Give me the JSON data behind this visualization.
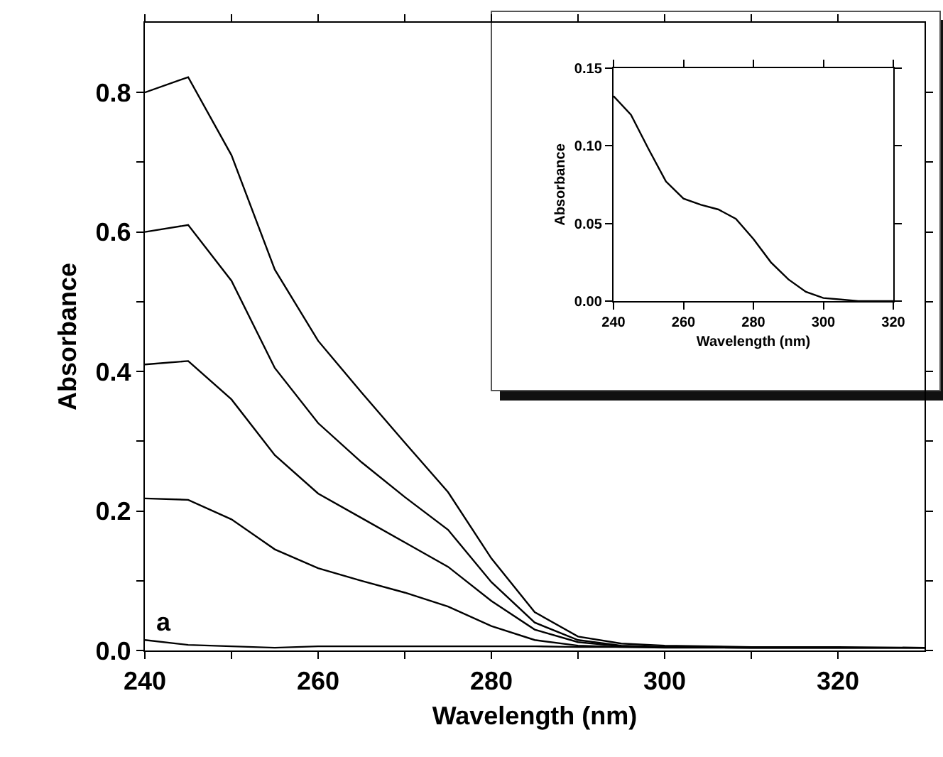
{
  "chart_data": [
    {
      "type": "line",
      "xlabel": "Wavelength (nm)",
      "ylabel": "Absorbance",
      "x": [
        240,
        245,
        250,
        255,
        260,
        265,
        270,
        275,
        280,
        285,
        290,
        295,
        300,
        310,
        320,
        330
      ],
      "series": [
        {
          "color": "#000000",
          "values": [
            0.8,
            0.822,
            0.71,
            0.546,
            0.444,
            0.37,
            0.298,
            0.227,
            0.132,
            0.055,
            0.02,
            0.01,
            0.007,
            0.005,
            0.005,
            0.004
          ]
        },
        {
          "color": "#000000",
          "values": [
            0.6,
            0.61,
            0.53,
            0.405,
            0.326,
            0.27,
            0.22,
            0.173,
            0.098,
            0.04,
            0.015,
            0.007,
            0.005,
            0.004,
            0.004,
            0.004
          ]
        },
        {
          "color": "#000000",
          "values": [
            0.41,
            0.415,
            0.36,
            0.28,
            0.225,
            0.19,
            0.155,
            0.12,
            0.071,
            0.03,
            0.012,
            0.006,
            0.005,
            0.004,
            0.004,
            0.004
          ]
        },
        {
          "color": "#000000",
          "values": [
            0.218,
            0.216,
            0.188,
            0.145,
            0.118,
            0.1,
            0.083,
            0.063,
            0.035,
            0.015,
            0.007,
            0.005,
            0.004,
            0.004,
            0.004,
            0.004
          ]
        },
        {
          "color": "#000000",
          "values": [
            0.015,
            0.008,
            0.006,
            0.004,
            0.006,
            0.006,
            0.006,
            0.006,
            0.006,
            0.006,
            0.005,
            0.005,
            0.005,
            0.004,
            0.004,
            0.004
          ]
        }
      ],
      "annotations": [
        "a"
      ],
      "xlim": [
        240,
        330
      ],
      "ylim": [
        0,
        0.9
      ],
      "xticks": [
        240,
        {
          "value": 250,
          "label": null
        },
        260,
        {
          "value": 270,
          "label": null
        },
        280,
        {
          "value": 290,
          "label": null
        },
        300,
        {
          "value": 310,
          "label": null
        },
        320
      ],
      "yticks": [
        {
          "value": 0,
          "label": "0.0"
        },
        {
          "value": 0.1,
          "label": null
        },
        0.2,
        {
          "value": 0.3,
          "label": null
        },
        0.4,
        {
          "value": 0.5,
          "label": null
        },
        0.6,
        {
          "value": 0.7,
          "label": null
        },
        0.8
      ],
      "grid": false,
      "marker": "none",
      "line_style": "solid"
    },
    {
      "type": "line",
      "xlabel": "Wavelength (nm)",
      "ylabel": "Absorbance",
      "x": [
        240,
        245,
        250,
        255,
        260,
        265,
        270,
        275,
        280,
        285,
        290,
        295,
        300,
        305,
        310,
        320
      ],
      "series": [
        {
          "color": "#000000",
          "values": [
            0.132,
            0.12,
            0.098,
            0.077,
            0.066,
            0.062,
            0.059,
            0.053,
            0.04,
            0.025,
            0.014,
            0.006,
            0.002,
            0.001,
            0,
            0
          ]
        }
      ],
      "xlim": [
        240,
        320
      ],
      "ylim": [
        0,
        0.15
      ],
      "xticks": [
        240,
        260,
        280,
        300,
        320
      ],
      "yticks": [
        {
          "value": 0,
          "label": "0.00"
        },
        {
          "value": 0.05,
          "label": "0.05"
        },
        {
          "value": 0.1,
          "label": "0.10"
        },
        0.15
      ],
      "grid": false,
      "marker": "none",
      "line_style": "solid"
    }
  ]
}
